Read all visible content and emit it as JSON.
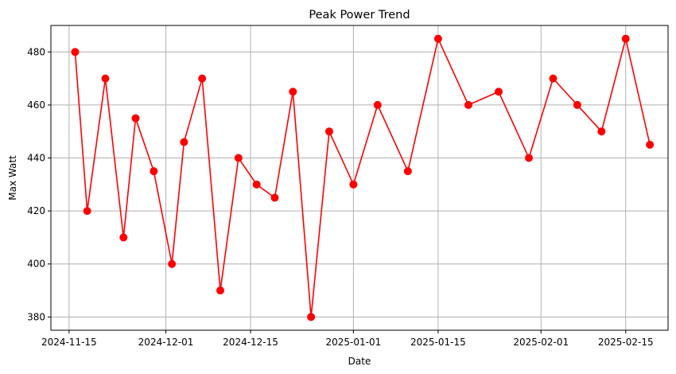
{
  "chart_data": {
    "type": "line",
    "title": "Peak Power Trend",
    "xlabel": "Date",
    "ylabel": "Max Watt",
    "x_axis_type": "date",
    "xlim": [
      "2024-11-12",
      "2025-02-22"
    ],
    "ylim": [
      375,
      490
    ],
    "x_ticks": [
      "2024-11-15",
      "2024-12-01",
      "2024-12-15",
      "2025-01-01",
      "2025-01-15",
      "2025-02-01",
      "2025-02-15"
    ],
    "y_ticks": [
      380,
      400,
      420,
      440,
      460,
      480
    ],
    "grid": true,
    "legend": "none",
    "series": [
      {
        "color": "#ff0000",
        "marker": "circle",
        "x": [
          "2024-11-16",
          "2024-11-18",
          "2024-11-21",
          "2024-11-24",
          "2024-11-26",
          "2024-11-29",
          "2024-12-02",
          "2024-12-04",
          "2024-12-07",
          "2024-12-10",
          "2024-12-13",
          "2024-12-16",
          "2024-12-19",
          "2024-12-22",
          "2024-12-25",
          "2024-12-28",
          "2025-01-01",
          "2025-01-05",
          "2025-01-10",
          "2025-01-15",
          "2025-01-20",
          "2025-01-25",
          "2025-01-30",
          "2025-02-03",
          "2025-02-07",
          "2025-02-11",
          "2025-02-15",
          "2025-02-19"
        ],
        "y": [
          480,
          420,
          470,
          410,
          455,
          435,
          400,
          446,
          470,
          390,
          440,
          430,
          425,
          465,
          380,
          450,
          430,
          460,
          435,
          485,
          460,
          465,
          440,
          470,
          460,
          450,
          485,
          445
        ]
      }
    ]
  }
}
